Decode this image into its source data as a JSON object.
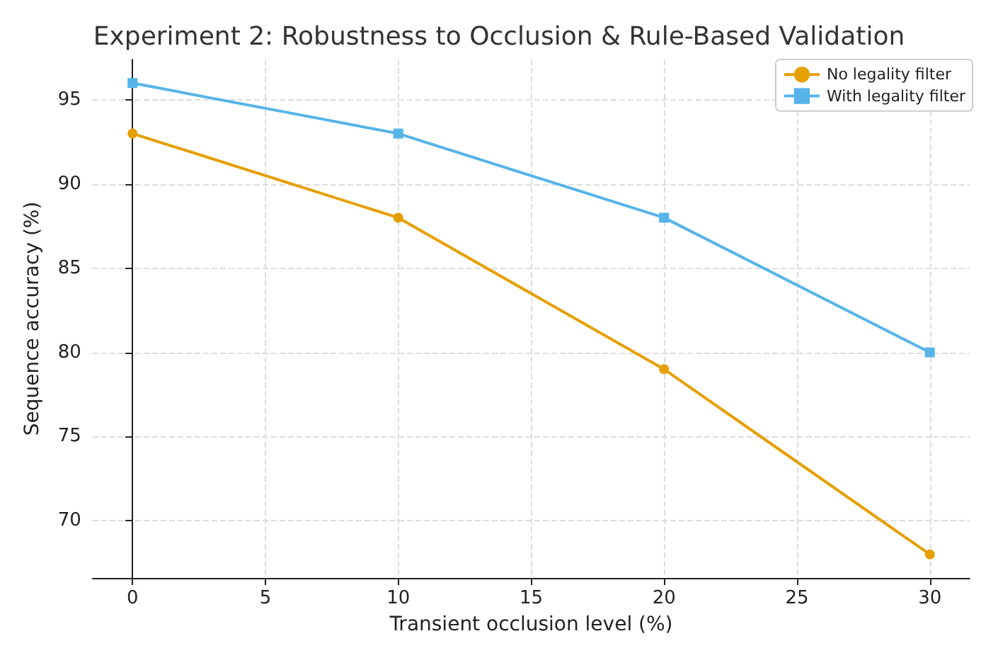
{
  "chart_data": {
    "type": "line",
    "title": "Experiment 2: Robustness to Occlusion & Rule-Based Validation",
    "xlabel": "Transient occlusion level (%)",
    "ylabel": "Sequence accuracy (%)",
    "x": [
      0,
      10,
      20,
      30
    ],
    "series": [
      {
        "name": "No legality filter",
        "color": "#e69f00",
        "marker": "circle",
        "values": [
          93,
          88,
          79,
          68
        ]
      },
      {
        "name": "With legality filter",
        "color": "#56b4e9",
        "marker": "square",
        "values": [
          96,
          93,
          88,
          80
        ]
      }
    ],
    "xlim": [
      -1.5,
      31.5
    ],
    "xticks": [
      0,
      5,
      10,
      15,
      20,
      25,
      30
    ],
    "ylim": [
      66.6,
      97.4
    ],
    "yticks": [
      70,
      75,
      80,
      85,
      90,
      95
    ],
    "grid": true,
    "legend": "top right",
    "line_style": "solid"
  }
}
